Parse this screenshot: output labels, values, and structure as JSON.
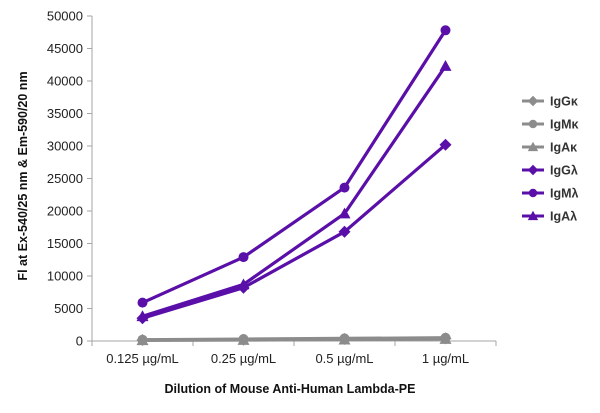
{
  "chart_data": {
    "type": "line",
    "categories": [
      "0.125 µg/mL",
      "0.25 µg/mL",
      "0.5 µg/mL",
      "1 µg/mL"
    ],
    "xlabel": "Dilution of Mouse Anti-Human Lambda-PE",
    "ylabel": "Fl at Ex-540/25 nm & Em-590/20 nm",
    "ylim": [
      0,
      50000
    ],
    "yticks": [
      0,
      5000,
      10000,
      15000,
      20000,
      25000,
      30000,
      35000,
      40000,
      45000,
      50000
    ],
    "grid": false,
    "legend_position": "right",
    "series": [
      {
        "name": "IgGκ",
        "values": [
          150,
          200,
          300,
          400
        ],
        "color": "#8c8c8c",
        "marker": "diamond"
      },
      {
        "name": "IgMκ",
        "values": [
          200,
          300,
          400,
          500
        ],
        "color": "#8c8c8c",
        "marker": "circle"
      },
      {
        "name": "IgAκ",
        "values": [
          100,
          150,
          200,
          300
        ],
        "color": "#8c8c8c",
        "marker": "triangle"
      },
      {
        "name": "IgGλ",
        "values": [
          3500,
          8200,
          16800,
          30200
        ],
        "color": "#5a0fa8",
        "marker": "diamond"
      },
      {
        "name": "IgMλ",
        "values": [
          5900,
          12900,
          23600,
          47800
        ],
        "color": "#5a0fa8",
        "marker": "circle"
      },
      {
        "name": "IgAλ",
        "values": [
          3800,
          8700,
          19600,
          42300
        ],
        "color": "#5a0fa8",
        "marker": "triangle"
      }
    ]
  }
}
